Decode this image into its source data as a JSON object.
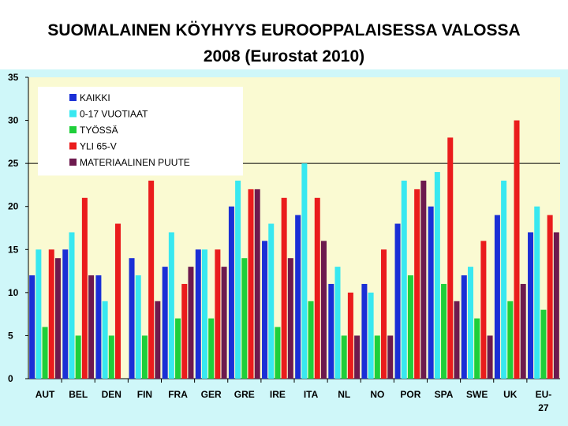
{
  "slide": {
    "title_line1": "SUOMALAINEN  KÖYHYYS EUROOPPALAISESSA VALOSSA",
    "title_line2": "2008 (Eurostat 2010)"
  },
  "chart_data": {
    "type": "bar",
    "categories": [
      "AUT",
      "BEL",
      "DEN",
      "FIN",
      "FRA",
      "GER",
      "GRE",
      "IRE",
      "ITA",
      "NL",
      "NO",
      "POR",
      "SPA",
      "SWE",
      "UK",
      "EU-27"
    ],
    "series": [
      {
        "name": "KAIKKI",
        "color": "#1a2fd6",
        "values": [
          12,
          15,
          12,
          14,
          13,
          15,
          20,
          16,
          19,
          11,
          11,
          18,
          20,
          12,
          19,
          17
        ]
      },
      {
        "name": "0-17 VUOTIAAT",
        "color": "#38e8f0",
        "values": [
          15,
          17,
          9,
          12,
          17,
          15,
          23,
          18,
          25,
          13,
          10,
          23,
          24,
          13,
          23,
          20
        ]
      },
      {
        "name": "TYÖSSÄ",
        "color": "#1fcf3a",
        "values": [
          6,
          5,
          5,
          5,
          7,
          7,
          14,
          6,
          9,
          5,
          5,
          12,
          11,
          7,
          9,
          8
        ]
      },
      {
        "name": "YLI  65-V",
        "color": "#ea1c1c",
        "values": [
          15,
          21,
          18,
          23,
          11,
          15,
          22,
          21,
          21,
          10,
          15,
          22,
          28,
          16,
          30,
          19
        ]
      },
      {
        "name": "MATERIAALINEN PUUTE",
        "color": "#6d1a4e",
        "values": [
          14,
          12,
          0,
          9,
          13,
          13,
          22,
          14,
          16,
          5,
          5,
          23,
          9,
          5,
          11,
          17
        ]
      }
    ],
    "ylim": [
      0,
      35
    ],
    "yticks": [
      0,
      5,
      10,
      15,
      20,
      25,
      30,
      35
    ],
    "grid": false,
    "reference_line": 25,
    "legend_position": "top-left",
    "plot_background": "#fafad2"
  }
}
